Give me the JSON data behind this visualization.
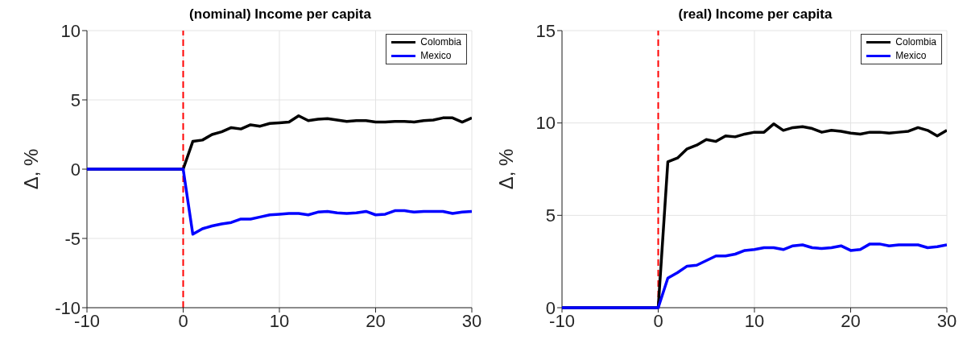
{
  "chart_data": [
    {
      "type": "line",
      "title": "(nominal) Income per capita",
      "ylabel": "Δ, %",
      "x": [
        -10,
        -9,
        -8,
        -7,
        -6,
        -5,
        -4,
        -3,
        -2,
        -1,
        0,
        1,
        2,
        3,
        4,
        5,
        6,
        7,
        8,
        9,
        10,
        11,
        12,
        13,
        14,
        15,
        16,
        17,
        18,
        19,
        20,
        21,
        22,
        23,
        24,
        25,
        26,
        27,
        28,
        29,
        30
      ],
      "xlim": [
        -10,
        30
      ],
      "xticks": [
        -10,
        0,
        10,
        20,
        30
      ],
      "ylim": [
        -10,
        10
      ],
      "yticks": [
        -10,
        -5,
        0,
        5,
        10
      ],
      "grid": true,
      "legend": "top right",
      "line_style": "solid",
      "marker": "none",
      "series": [
        {
          "name": "Colombia",
          "color": "#000000",
          "values": [
            0,
            0,
            0,
            0,
            0,
            0,
            0,
            0,
            0,
            0,
            0,
            2.0,
            2.1,
            2.5,
            2.7,
            3.0,
            2.9,
            3.2,
            3.1,
            3.3,
            3.35,
            3.4,
            3.85,
            3.5,
            3.6,
            3.65,
            3.55,
            3.45,
            3.5,
            3.5,
            3.4,
            3.4,
            3.45,
            3.45,
            3.4,
            3.5,
            3.55,
            3.7,
            3.7,
            3.4,
            3.7
          ]
        },
        {
          "name": "Mexico",
          "color": "#0000ff",
          "values": [
            0,
            0,
            0,
            0,
            0,
            0,
            0,
            0,
            0,
            0,
            0,
            -4.7,
            -4.3,
            -4.1,
            -3.95,
            -3.85,
            -3.6,
            -3.6,
            -3.45,
            -3.3,
            -3.25,
            -3.2,
            -3.2,
            -3.3,
            -3.1,
            -3.05,
            -3.15,
            -3.2,
            -3.15,
            -3.05,
            -3.3,
            -3.25,
            -3.0,
            -3.0,
            -3.1,
            -3.05,
            -3.05,
            -3.05,
            -3.2,
            -3.1,
            -3.05
          ]
        }
      ],
      "ref_lines": [
        {
          "axis": "x",
          "value": 0,
          "color": "#ff0000",
          "line_style": "dashed"
        }
      ]
    },
    {
      "type": "line",
      "title": "(real) Income per capita",
      "ylabel": "Δ, %",
      "x": [
        -10,
        -9,
        -8,
        -7,
        -6,
        -5,
        -4,
        -3,
        -2,
        -1,
        0,
        1,
        2,
        3,
        4,
        5,
        6,
        7,
        8,
        9,
        10,
        11,
        12,
        13,
        14,
        15,
        16,
        17,
        18,
        19,
        20,
        21,
        22,
        23,
        24,
        25,
        26,
        27,
        28,
        29,
        30
      ],
      "xlim": [
        -10,
        30
      ],
      "xticks": [
        -10,
        0,
        10,
        20,
        30
      ],
      "ylim": [
        0,
        15
      ],
      "yticks": [
        0,
        5,
        10,
        15
      ],
      "grid": true,
      "legend": "top right",
      "line_style": "solid",
      "marker": "none",
      "series": [
        {
          "name": "Colombia",
          "color": "#000000",
          "values": [
            0,
            0,
            0,
            0,
            0,
            0,
            0,
            0,
            0,
            0,
            0,
            7.9,
            8.1,
            8.6,
            8.8,
            9.1,
            9.0,
            9.3,
            9.25,
            9.4,
            9.5,
            9.5,
            9.95,
            9.6,
            9.75,
            9.8,
            9.7,
            9.5,
            9.6,
            9.55,
            9.45,
            9.4,
            9.5,
            9.5,
            9.45,
            9.5,
            9.55,
            9.75,
            9.6,
            9.3,
            9.6
          ]
        },
        {
          "name": "Mexico",
          "color": "#0000ff",
          "values": [
            0,
            0,
            0,
            0,
            0,
            0,
            0,
            0,
            0,
            0,
            0,
            1.6,
            1.9,
            2.25,
            2.3,
            2.55,
            2.8,
            2.8,
            2.9,
            3.1,
            3.15,
            3.25,
            3.25,
            3.15,
            3.35,
            3.4,
            3.25,
            3.2,
            3.25,
            3.35,
            3.1,
            3.15,
            3.45,
            3.45,
            3.35,
            3.4,
            3.4,
            3.4,
            3.25,
            3.3,
            3.4
          ]
        }
      ],
      "ref_lines": [
        {
          "axis": "x",
          "value": 0,
          "color": "#ff0000",
          "line_style": "dashed"
        }
      ]
    }
  ]
}
